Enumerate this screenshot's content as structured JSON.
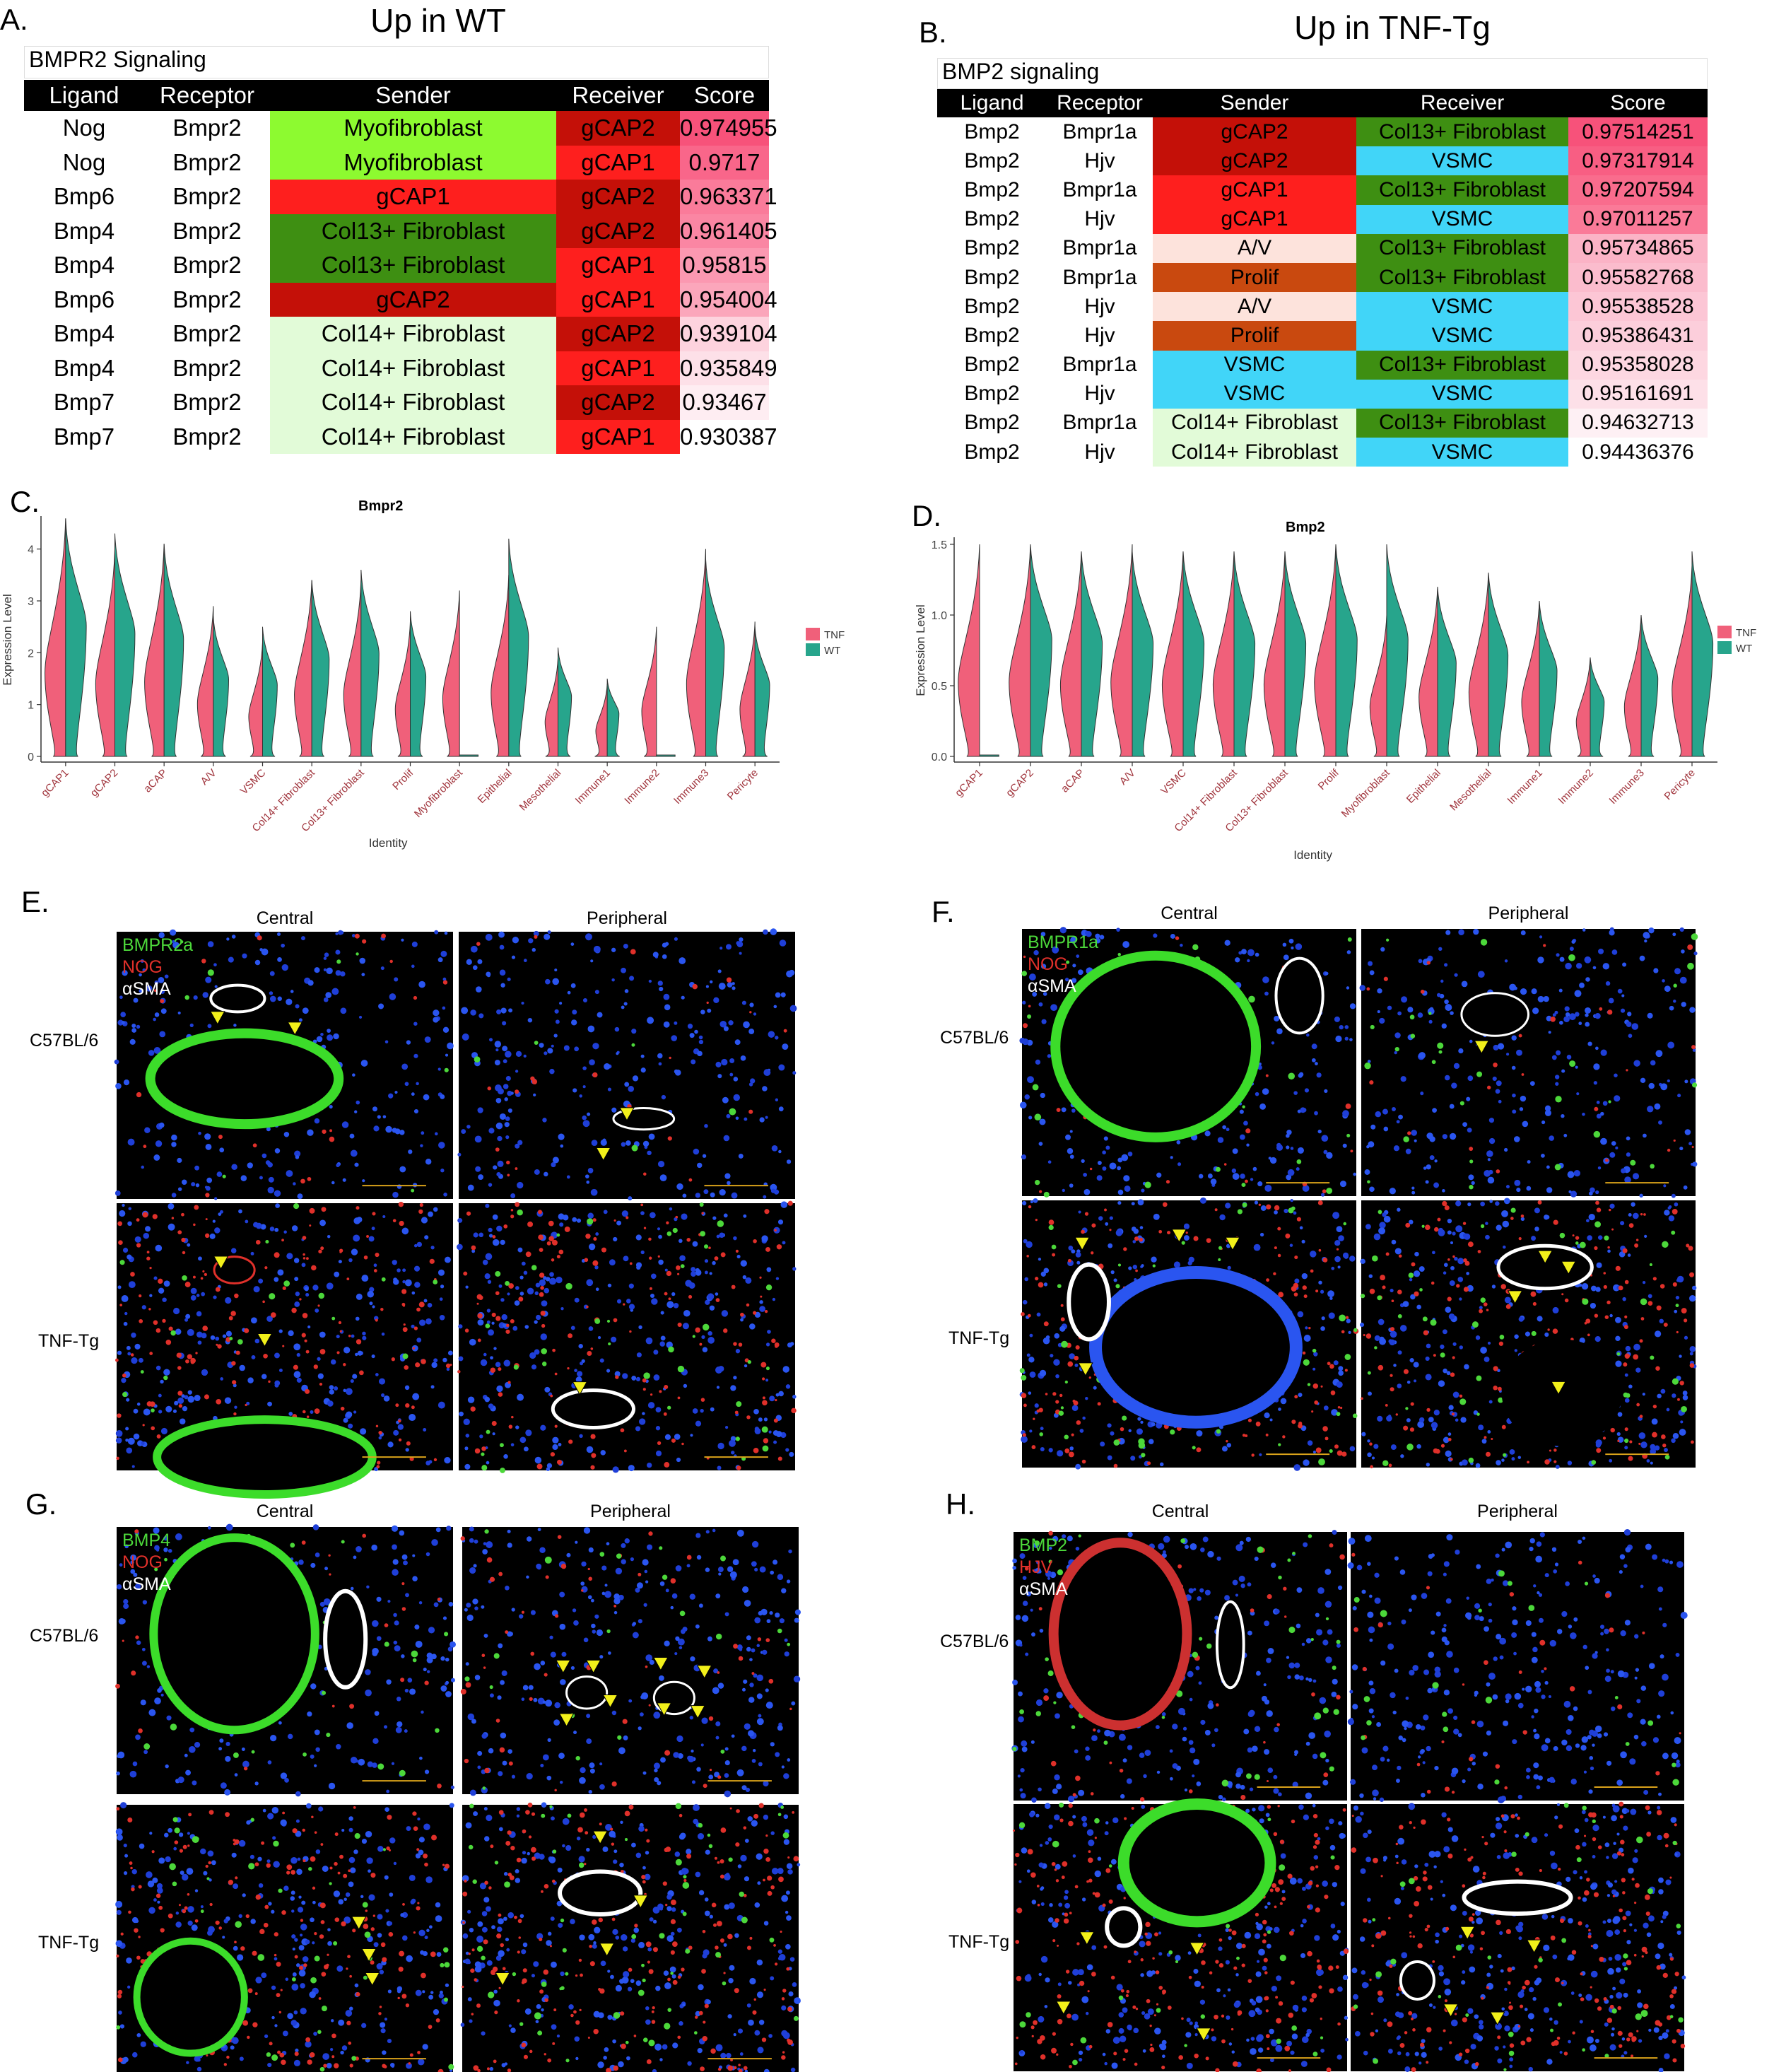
{
  "panels": {
    "A": {
      "letter": "A.",
      "title": "Up in WT",
      "caption": "BMPR2 Signaling",
      "headers": [
        "Ligand",
        "Receptor",
        "Sender",
        "Receiver",
        "Score"
      ],
      "rows": [
        {
          "ligand": "Nog",
          "receptor": "Bmpr2",
          "sender": "Myofibroblast",
          "receiver": "gCAP2",
          "score": "0.974955"
        },
        {
          "ligand": "Nog",
          "receptor": "Bmpr2",
          "sender": "Myofibroblast",
          "receiver": "gCAP1",
          "score": "0.9717"
        },
        {
          "ligand": "Bmp6",
          "receptor": "Bmpr2",
          "sender": "gCAP1",
          "receiver": "gCAP2",
          "score": "0.963371"
        },
        {
          "ligand": "Bmp4",
          "receptor": "Bmpr2",
          "sender": "Col13+ Fibroblast",
          "receiver": "gCAP2",
          "score": "0.961405"
        },
        {
          "ligand": "Bmp4",
          "receptor": "Bmpr2",
          "sender": "Col13+ Fibroblast",
          "receiver": "gCAP1",
          "score": "0.95815"
        },
        {
          "ligand": "Bmp6",
          "receptor": "Bmpr2",
          "sender": "gCAP2",
          "receiver": "gCAP1",
          "score": "0.954004"
        },
        {
          "ligand": "Bmp4",
          "receptor": "Bmpr2",
          "sender": "Col14+ Fibroblast",
          "receiver": "gCAP2",
          "score": "0.939104"
        },
        {
          "ligand": "Bmp4",
          "receptor": "Bmpr2",
          "sender": "Col14+ Fibroblast",
          "receiver": "gCAP1",
          "score": "0.935849"
        },
        {
          "ligand": "Bmp7",
          "receptor": "Bmpr2",
          "sender": "Col14+ Fibroblast",
          "receiver": "gCAP2",
          "score": "0.93467"
        },
        {
          "ligand": "Bmp7",
          "receptor": "Bmpr2",
          "sender": "Col14+ Fibroblast",
          "receiver": "gCAP1",
          "score": "0.930387"
        }
      ]
    },
    "B": {
      "letter": "B.",
      "title": "Up in TNF-Tg",
      "caption": "BMP2 signaling",
      "headers": [
        "Ligand",
        "Receptor",
        "Sender",
        "Receiver",
        "Score"
      ],
      "rows": [
        {
          "ligand": "Bmp2",
          "receptor": "Bmpr1a",
          "sender": "gCAP2",
          "receiver": "Col13+ Fibroblast",
          "score": "0.97514251"
        },
        {
          "ligand": "Bmp2",
          "receptor": "Hjv",
          "sender": "gCAP2",
          "receiver": "VSMC",
          "score": "0.97317914"
        },
        {
          "ligand": "Bmp2",
          "receptor": "Bmpr1a",
          "sender": "gCAP1",
          "receiver": "Col13+ Fibroblast",
          "score": "0.97207594"
        },
        {
          "ligand": "Bmp2",
          "receptor": "Hjv",
          "sender": "gCAP1",
          "receiver": "VSMC",
          "score": "0.97011257"
        },
        {
          "ligand": "Bmp2",
          "receptor": "Bmpr1a",
          "sender": "A/V",
          "receiver": "Col13+ Fibroblast",
          "score": "0.95734865"
        },
        {
          "ligand": "Bmp2",
          "receptor": "Bmpr1a",
          "sender": "Prolif",
          "receiver": "Col13+ Fibroblast",
          "score": "0.95582768"
        },
        {
          "ligand": "Bmp2",
          "receptor": "Hjv",
          "sender": "A/V",
          "receiver": "VSMC",
          "score": "0.95538528"
        },
        {
          "ligand": "Bmp2",
          "receptor": "Hjv",
          "sender": "Prolif",
          "receiver": "VSMC",
          "score": "0.95386431"
        },
        {
          "ligand": "Bmp2",
          "receptor": "Bmpr1a",
          "sender": "VSMC",
          "receiver": "Col13+ Fibroblast",
          "score": "0.95358028"
        },
        {
          "ligand": "Bmp2",
          "receptor": "Hjv",
          "sender": "VSMC",
          "receiver": "VSMC",
          "score": "0.95161691"
        },
        {
          "ligand": "Bmp2",
          "receptor": "Bmpr1a",
          "sender": "Col14+ Fibroblast",
          "receiver": "Col13+ Fibroblast",
          "score": "0.94632713"
        },
        {
          "ligand": "Bmp2",
          "receptor": "Hjv",
          "sender": "Col14+ Fibroblast",
          "receiver": "VSMC",
          "score": "0.94436376"
        }
      ]
    },
    "C": {
      "letter": "C."
    },
    "D": {
      "letter": "D."
    },
    "E": {
      "letter": "E.",
      "central": "Central",
      "peripheral": "Peripheral",
      "row1": "C57BL/6",
      "row2": "TNF-Tg",
      "stain1": "BMPR2a",
      "stain2": "NOG",
      "stain3": "αSMA"
    },
    "F": {
      "letter": "F.",
      "central": "Central",
      "peripheral": "Peripheral",
      "row1": "C57BL/6",
      "row2": "TNF-Tg",
      "stain1": "BMPR1a",
      "stain2": "NOG",
      "stain3": "αSMA"
    },
    "G": {
      "letter": "G.",
      "central": "Central",
      "peripheral": "Peripheral",
      "row1": "C57BL/6",
      "row2": "TNF-Tg",
      "stain1": "BMP4",
      "stain2": "NOG",
      "stain3": "αSMA"
    },
    "H": {
      "letter": "H.",
      "central": "Central",
      "peripheral": "Peripheral",
      "row1": "C57BL/6",
      "row2": "TNF-Tg",
      "stain1": "BMP2",
      "stain2": "HJV",
      "stain3": "αSMA"
    }
  },
  "colors": {
    "tnf": "#f0607a",
    "wt": "#27a58c",
    "myofibroblast": "#8dfa30",
    "gcap1": "#fe1f1e",
    "gcap2": "#c41008",
    "col13": "#3e8f12",
    "col14": "#e2fbd8",
    "av": "#fde3dc",
    "prolif": "#c9490f",
    "vsmc": "#41d5f8",
    "score_hi": "#f7527a",
    "score_mid": "#f9a0b8",
    "score_lo": "#fde6ec"
  },
  "chart_data": [
    {
      "type": "violin",
      "title": "Bmpr2",
      "xlabel": "Identity",
      "ylabel": "Expression Level",
      "ylim": [
        0,
        4.5
      ],
      "yticks": [
        "0",
        "1",
        "2",
        "3",
        "4"
      ],
      "categories": [
        "gCAP1",
        "gCAP2",
        "aCAP",
        "A/V",
        "VSMC",
        "Col14+ Fibroblast",
        "Col13+ Fibroblast",
        "Prolif",
        "Myofibroblast",
        "Epithelial",
        "Mesothelial",
        "Immune1",
        "Immune2",
        "Immune3",
        "Pericyte"
      ],
      "legend": [
        "TNF",
        "WT"
      ],
      "legend_position": "right",
      "series": [
        {
          "name": "TNF",
          "max": [
            4.8,
            4.0,
            4.1,
            2.9,
            2.2,
            3.4,
            3.4,
            2.6,
            3.2,
            3.5,
            1.9,
            1.4,
            2.5,
            4.0,
            2.6
          ]
        },
        {
          "name": "WT",
          "max": [
            4.8,
            4.3,
            4.1,
            2.7,
            2.5,
            3.4,
            3.6,
            2.8,
            0.1,
            4.2,
            2.1,
            1.5,
            0.1,
            3.8,
            2.5
          ]
        }
      ]
    },
    {
      "type": "violin",
      "title": "Bmp2",
      "xlabel": "Identity",
      "ylabel": "Expression Level",
      "ylim": [
        0,
        1.5
      ],
      "yticks": [
        "0.0",
        "0.5",
        "1.0",
        "1.5"
      ],
      "categories": [
        "gCAP1",
        "gCAP2",
        "aCAP",
        "A/V",
        "VSMC",
        "Col14+ Fibroblast",
        "Col13+ Fibroblast",
        "Prolif",
        "Myofibroblast",
        "Epithelial",
        "Mesothelial",
        "Immune1",
        "Immune2",
        "Immune3",
        "Pericyte"
      ],
      "legend": [
        "TNF",
        "WT"
      ],
      "legend_position": "right",
      "series": [
        {
          "name": "TNF",
          "max": [
            1.5,
            1.5,
            1.45,
            1.5,
            1.45,
            1.45,
            1.45,
            1.5,
            1.0,
            1.2,
            1.3,
            1.1,
            0.7,
            1.0,
            1.35
          ]
        },
        {
          "name": "WT",
          "max": [
            0.05,
            1.5,
            1.45,
            1.45,
            1.45,
            1.45,
            1.45,
            1.5,
            1.5,
            1.2,
            1.3,
            1.1,
            0.7,
            1.0,
            1.45
          ]
        }
      ]
    }
  ]
}
